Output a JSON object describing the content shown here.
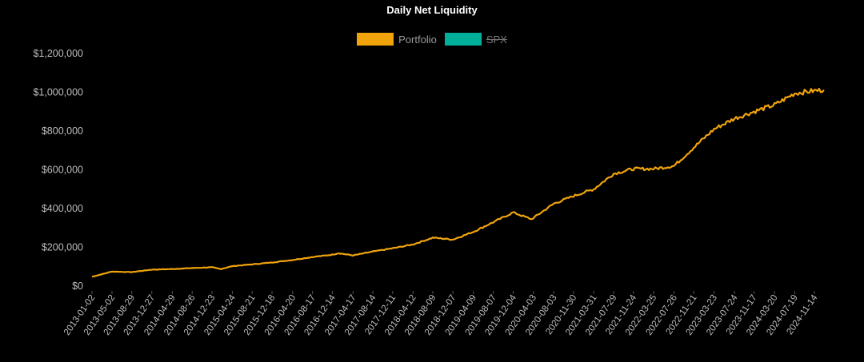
{
  "chart_data": {
    "type": "line",
    "title": "Daily Net Liquidity",
    "xlabel": "",
    "ylabel": "",
    "ylim": [
      0,
      1200000
    ],
    "y_ticks": [
      0,
      200000,
      400000,
      600000,
      800000,
      1000000,
      1200000
    ],
    "y_tick_labels": [
      "$0",
      "$200,000",
      "$400,000",
      "$600,000",
      "$800,000",
      "$1,000,000",
      "$1,200,000"
    ],
    "x_tick_labels": [
      "2013-01-02",
      "2013-05-02",
      "2013-08-29",
      "2013-12-27",
      "2014-04-29",
      "2014-08-26",
      "2014-12-23",
      "2015-04-24",
      "2015-08-21",
      "2015-12-18",
      "2016-04-20",
      "2016-08-17",
      "2016-12-14",
      "2017-04-17",
      "2017-08-14",
      "2017-12-11",
      "2018-04-12",
      "2018-08-09",
      "2018-12-07",
      "2019-04-09",
      "2019-08-07",
      "2019-12-04",
      "2020-04-03",
      "2020-08-03",
      "2020-11-30",
      "2021-03-31",
      "2021-07-29",
      "2021-11-24",
      "2022-03-25",
      "2022-07-26",
      "2022-11-21",
      "2023-03-23",
      "2023-07-24",
      "2023-11-17",
      "2024-03-20",
      "2024-07-19",
      "2024-11-14"
    ],
    "grid": false,
    "legend_position": "top-center",
    "series": [
      {
        "name": "Portfolio",
        "color": "#f0a30a",
        "visible": true,
        "x": [
          "2013-01-02",
          "2013-05-02",
          "2013-08-29",
          "2013-12-27",
          "2014-04-29",
          "2014-08-26",
          "2014-12-23",
          "2015-02-15",
          "2015-04-24",
          "2015-08-21",
          "2015-12-18",
          "2016-04-20",
          "2016-08-17",
          "2016-12-14",
          "2017-01-20",
          "2017-04-17",
          "2017-08-14",
          "2017-12-11",
          "2018-04-12",
          "2018-08-09",
          "2018-12-07",
          "2019-04-09",
          "2019-08-07",
          "2019-12-04",
          "2020-03-23",
          "2020-08-03",
          "2020-11-30",
          "2021-03-31",
          "2021-07-29",
          "2021-11-24",
          "2022-03-25",
          "2022-07-26",
          "2022-11-21",
          "2023-03-23",
          "2023-07-24",
          "2023-11-17",
          "2024-03-20",
          "2024-07-19",
          "2024-11-14",
          "2025-01-10"
        ],
        "values": [
          48000,
          75000,
          72000,
          85000,
          88000,
          93000,
          97000,
          88000,
          103000,
          112000,
          122000,
          135000,
          150000,
          162000,
          170000,
          158000,
          178000,
          195000,
          215000,
          250000,
          240000,
          280000,
          330000,
          380000,
          345000,
          425000,
          465000,
          500000,
          580000,
          605000,
          605000,
          620000,
          715000,
          810000,
          865000,
          900000,
          935000,
          995000,
          1008000,
          1012000
        ]
      },
      {
        "name": "SPX",
        "color": "#00b09b",
        "visible": false,
        "x": [],
        "values": []
      }
    ]
  }
}
